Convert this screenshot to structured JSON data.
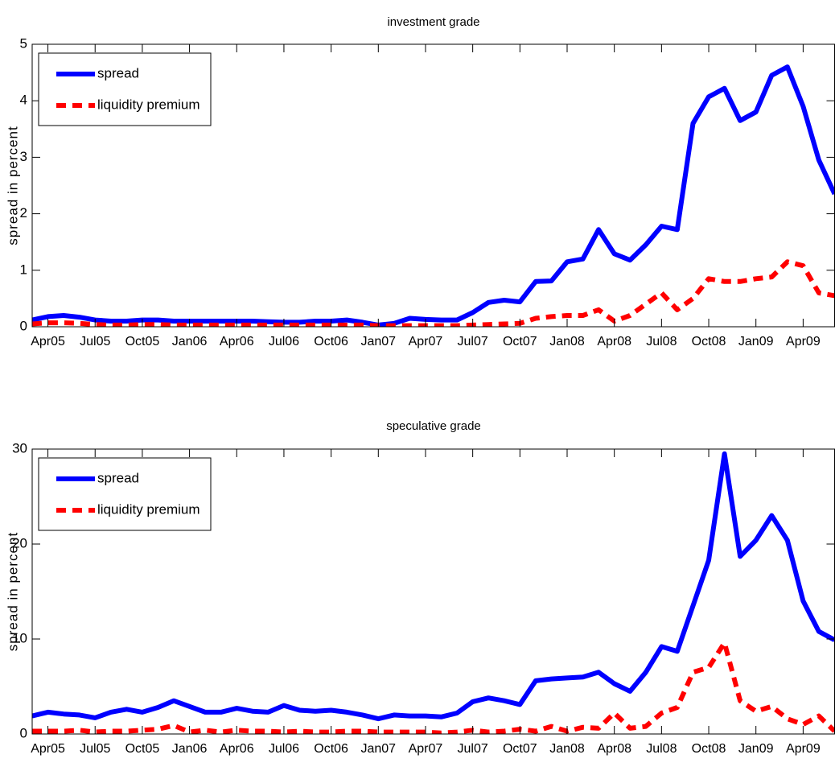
{
  "chart_data": [
    {
      "type": "line",
      "title": "investment grade",
      "ylabel": "spread in percent",
      "x": [
        3,
        4,
        5,
        6,
        7,
        8,
        9,
        10,
        11,
        12,
        13,
        14,
        15,
        16,
        17,
        18,
        19,
        20,
        21,
        22,
        23,
        24,
        25,
        26,
        27,
        28,
        29,
        30,
        31,
        32,
        33,
        34,
        35,
        36,
        37,
        38,
        39,
        40,
        41,
        42,
        43,
        44,
        45,
        46,
        47,
        48,
        49,
        50,
        51,
        52,
        53,
        54
      ],
      "xlim": [
        3,
        54
      ],
      "xticks": [
        {
          "value": 4,
          "label": "Apr05"
        },
        {
          "value": 7,
          "label": "Jul05"
        },
        {
          "value": 10,
          "label": "Oct05"
        },
        {
          "value": 13,
          "label": "Jan06"
        },
        {
          "value": 16,
          "label": "Apr06"
        },
        {
          "value": 19,
          "label": "Jul06"
        },
        {
          "value": 22,
          "label": "Oct06"
        },
        {
          "value": 25,
          "label": "Jan07"
        },
        {
          "value": 28,
          "label": "Apr07"
        },
        {
          "value": 31,
          "label": "Jul07"
        },
        {
          "value": 34,
          "label": "Oct07"
        },
        {
          "value": 37,
          "label": "Jan08"
        },
        {
          "value": 40,
          "label": "Apr08"
        },
        {
          "value": 43,
          "label": "Jul08"
        },
        {
          "value": 46,
          "label": "Oct08"
        },
        {
          "value": 49,
          "label": "Jan09"
        },
        {
          "value": 52,
          "label": "Apr09"
        }
      ],
      "ylim": [
        0,
        5
      ],
      "yticks": [
        0,
        1,
        2,
        3,
        4,
        5
      ],
      "grid": false,
      "legend": "upper left",
      "series": [
        {
          "name": "spread",
          "color": "#0000ff",
          "dash": "solid",
          "values": [
            0.12,
            0.18,
            0.2,
            0.17,
            0.12,
            0.1,
            0.1,
            0.12,
            0.12,
            0.1,
            0.1,
            0.1,
            0.1,
            0.1,
            0.1,
            0.09,
            0.08,
            0.08,
            0.1,
            0.1,
            0.12,
            0.08,
            0.03,
            0.06,
            0.15,
            0.13,
            0.12,
            0.12,
            0.25,
            0.43,
            0.47,
            0.44,
            0.8,
            0.81,
            1.15,
            1.2,
            1.72,
            1.29,
            1.18,
            1.45,
            1.78,
            1.72,
            3.6,
            4.07,
            4.22,
            3.65,
            3.8,
            4.45,
            4.6,
            3.9,
            2.95,
            2.35
          ]
        },
        {
          "name": "liquidity premium",
          "color": "#ff0000",
          "dash": "dashed",
          "values": [
            0.05,
            0.07,
            0.07,
            0.06,
            0.04,
            0.03,
            0.03,
            0.04,
            0.04,
            0.03,
            0.03,
            0.03,
            0.03,
            0.03,
            0.03,
            0.03,
            0.03,
            0.03,
            0.03,
            0.03,
            0.03,
            0.03,
            0.02,
            0.02,
            0.02,
            0.02,
            0.02,
            0.02,
            0.03,
            0.04,
            0.05,
            0.06,
            0.15,
            0.18,
            0.2,
            0.2,
            0.3,
            0.1,
            0.2,
            0.4,
            0.6,
            0.3,
            0.5,
            0.85,
            0.8,
            0.8,
            0.85,
            0.88,
            1.15,
            1.08,
            0.6,
            0.55
          ]
        }
      ]
    },
    {
      "type": "line",
      "title": "speculative grade",
      "ylabel": "spread in percent",
      "x": [
        3,
        4,
        5,
        6,
        7,
        8,
        9,
        10,
        11,
        12,
        13,
        14,
        15,
        16,
        17,
        18,
        19,
        20,
        21,
        22,
        23,
        24,
        25,
        26,
        27,
        28,
        29,
        30,
        31,
        32,
        33,
        34,
        35,
        36,
        37,
        38,
        39,
        40,
        41,
        42,
        43,
        44,
        45,
        46,
        47,
        48,
        49,
        50,
        51,
        52,
        53,
        54
      ],
      "xlim": [
        3,
        54
      ],
      "xticks": [
        {
          "value": 4,
          "label": "Apr05"
        },
        {
          "value": 7,
          "label": "Jul05"
        },
        {
          "value": 10,
          "label": "Oct05"
        },
        {
          "value": 13,
          "label": "Jan06"
        },
        {
          "value": 16,
          "label": "Apr06"
        },
        {
          "value": 19,
          "label": "Jul06"
        },
        {
          "value": 22,
          "label": "Oct06"
        },
        {
          "value": 25,
          "label": "Jan07"
        },
        {
          "value": 28,
          "label": "Apr07"
        },
        {
          "value": 31,
          "label": "Jul07"
        },
        {
          "value": 34,
          "label": "Oct07"
        },
        {
          "value": 37,
          "label": "Jan08"
        },
        {
          "value": 40,
          "label": "Apr08"
        },
        {
          "value": 43,
          "label": "Jul08"
        },
        {
          "value": 46,
          "label": "Oct08"
        },
        {
          "value": 49,
          "label": "Jan09"
        },
        {
          "value": 52,
          "label": "Apr09"
        }
      ],
      "ylim": [
        0,
        30
      ],
      "yticks": [
        0,
        10,
        20,
        30
      ],
      "grid": false,
      "legend": "upper left",
      "series": [
        {
          "name": "spread",
          "color": "#0000ff",
          "dash": "solid",
          "values": [
            1.9,
            2.3,
            2.1,
            2.0,
            1.7,
            2.3,
            2.6,
            2.3,
            2.8,
            3.5,
            2.9,
            2.3,
            2.3,
            2.7,
            2.4,
            2.3,
            3.0,
            2.5,
            2.4,
            2.5,
            2.3,
            2.0,
            1.6,
            2.0,
            1.9,
            1.9,
            1.8,
            2.2,
            3.4,
            3.8,
            3.5,
            3.1,
            5.6,
            5.8,
            5.9,
            6.0,
            6.5,
            5.3,
            4.5,
            6.5,
            9.2,
            8.7,
            13.5,
            18.3,
            29.5,
            18.7,
            20.4,
            23.0,
            20.4,
            14.0,
            10.8,
            9.9
          ]
        },
        {
          "name": "liquidity premium",
          "color": "#ff0000",
          "dash": "dashed",
          "values": [
            0.3,
            0.3,
            0.3,
            0.4,
            0.2,
            0.3,
            0.3,
            0.4,
            0.5,
            0.9,
            0.2,
            0.4,
            0.2,
            0.4,
            0.3,
            0.3,
            0.2,
            0.3,
            0.2,
            0.2,
            0.3,
            0.3,
            0.2,
            0.2,
            0.2,
            0.2,
            0.1,
            0.2,
            0.4,
            0.2,
            0.3,
            0.5,
            0.3,
            0.8,
            0.3,
            0.7,
            0.6,
            2.2,
            0.6,
            0.8,
            2.2,
            2.8,
            6.5,
            7.0,
            9.6,
            3.5,
            2.4,
            2.9,
            1.6,
            1.0,
            1.9,
            0.3
          ]
        }
      ]
    }
  ]
}
